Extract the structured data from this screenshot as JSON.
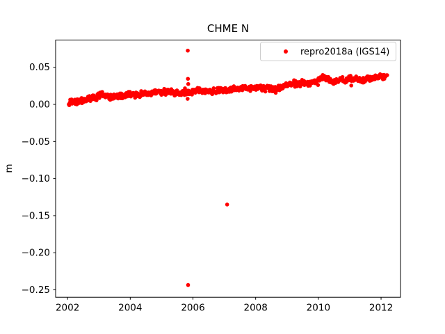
{
  "figure": {
    "background": "#ffffff",
    "spine_color": "#000000",
    "legend_border_color": "#cccccc",
    "legend_background": "#ffffff"
  },
  "chart_data": {
    "type": "scatter",
    "title": "CHME N",
    "xlabel": "",
    "ylabel": "m",
    "grid": false,
    "legend_position": "upper right",
    "xlim": [
      2001.62,
      2012.62
    ],
    "ylim": [
      -0.26,
      0.0867
    ],
    "xticks": [
      2002,
      2004,
      2006,
      2008,
      2010,
      2012
    ],
    "xtick_labels": [
      "2002",
      "2004",
      "2006",
      "2008",
      "2010",
      "2012"
    ],
    "yticks": [
      0.05,
      0.0,
      -0.05,
      -0.1,
      -0.15,
      -0.2,
      -0.25
    ],
    "ytick_labels": [
      "0.05",
      "0.00",
      "−0.05",
      "−0.10",
      "−0.15",
      "−0.20",
      "−0.25"
    ],
    "series": [
      {
        "name": "repro2018a (IGS14)",
        "color": "#ff0000",
        "marker": "dot",
        "marker_radius_px": 2.8,
        "time_range": [
          2002.04,
          2012.21
        ],
        "point_spacing_years": 0.015,
        "noise_std": 0.0021,
        "seed": 42,
        "trend": [
          [
            2002.04,
            0.0025
          ],
          [
            2002.3,
            0.004
          ],
          [
            2002.6,
            0.006
          ],
          [
            2002.9,
            0.009
          ],
          [
            2003.05,
            0.013
          ],
          [
            2003.3,
            0.01
          ],
          [
            2003.6,
            0.011
          ],
          [
            2004.0,
            0.013
          ],
          [
            2004.4,
            0.0135
          ],
          [
            2004.8,
            0.016
          ],
          [
            2005.1,
            0.017
          ],
          [
            2005.5,
            0.015
          ],
          [
            2005.85,
            0.016
          ],
          [
            2006.1,
            0.019
          ],
          [
            2006.5,
            0.0175
          ],
          [
            2007.0,
            0.019
          ],
          [
            2007.5,
            0.021
          ],
          [
            2008.0,
            0.0235
          ],
          [
            2008.3,
            0.022
          ],
          [
            2008.65,
            0.0195
          ],
          [
            2009.0,
            0.027
          ],
          [
            2009.3,
            0.028
          ],
          [
            2009.7,
            0.03
          ],
          [
            2010.0,
            0.031
          ],
          [
            2010.15,
            0.036
          ],
          [
            2010.45,
            0.031
          ],
          [
            2010.8,
            0.034
          ],
          [
            2011.1,
            0.0345
          ],
          [
            2011.35,
            0.032
          ],
          [
            2011.7,
            0.036
          ],
          [
            2012.0,
            0.0365
          ],
          [
            2012.2,
            0.039
          ]
        ],
        "outliers_and_extras": [
          [
            2005.835,
            0.0725
          ],
          [
            2005.845,
            -0.2435
          ],
          [
            2007.09,
            -0.135
          ],
          [
            2005.84,
            0.0345
          ],
          [
            2005.85,
            0.0275
          ],
          [
            2005.83,
            0.0075
          ],
          [
            2011.05,
            0.0255
          ]
        ]
      }
    ]
  }
}
